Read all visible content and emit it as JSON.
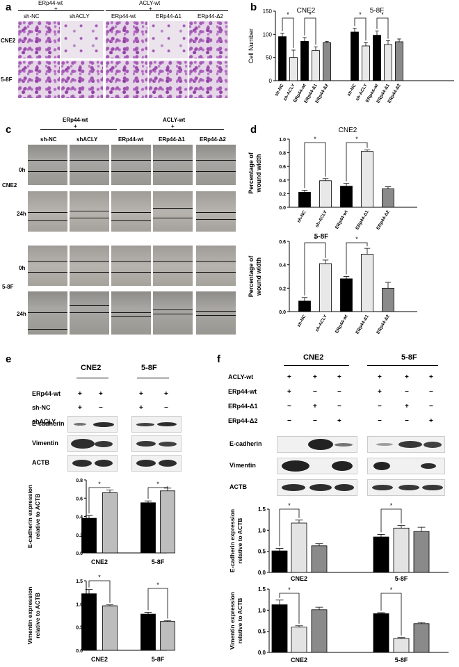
{
  "panels": {
    "a": "a",
    "b": "b",
    "c": "c",
    "d": "d",
    "e": "e",
    "f": "f"
  },
  "panel_a": {
    "grp1_title": "ERp44-wt",
    "grp1_plus": "+",
    "grp2_title": "ACLY-wt",
    "grp2_plus": "+",
    "cols": [
      "sh-NC",
      "shACLY",
      "ERp44-wt",
      "ERp44-Δ1",
      "ERp44-Δ2"
    ],
    "rows": [
      "CNE2",
      "5-8F"
    ]
  },
  "panel_c": {
    "grp1_title": "ERp44-wt",
    "grp1_plus": "+",
    "grp2_title": "ACLY-wt",
    "grp2_plus": "+",
    "cols": [
      "sh-NC",
      "shACLY",
      "ERp44-wt",
      "ERp44-Δ1",
      "ERp44-Δ2"
    ],
    "cells": [
      "CNE2",
      "5-8F"
    ],
    "times": [
      "0h",
      "24h",
      "0h",
      "24h"
    ]
  },
  "panel_e": {
    "cell_headers": [
      "CNE2",
      "5-8F"
    ],
    "conditions": [
      {
        "label": "ERp44-wt",
        "marks": [
          "+",
          "+",
          "+",
          "+"
        ]
      },
      {
        "label": "sh-NC",
        "marks": [
          "+",
          "−",
          "+",
          "−"
        ]
      },
      {
        "label": "shACLY",
        "marks": [
          "−",
          "+",
          "−",
          "+"
        ]
      }
    ],
    "blots": [
      "E-cadherin",
      "Vimentin",
      "ACTB"
    ]
  },
  "panel_f": {
    "cell_headers": [
      "CNE2",
      "5-8F"
    ],
    "conditions": [
      {
        "label": "ACLY-wt",
        "marks": [
          "+",
          "+",
          "+",
          "+",
          "+",
          "+"
        ]
      },
      {
        "label": "ERp44-wt",
        "marks": [
          "+",
          "−",
          "−",
          "+",
          "−",
          "−"
        ]
      },
      {
        "label": "ERp44-Δ1",
        "marks": [
          "−",
          "+",
          "−",
          "−",
          "+",
          "−"
        ]
      },
      {
        "label": "ERp44-Δ2",
        "marks": [
          "−",
          "−",
          "+",
          "−",
          "−",
          "+"
        ]
      }
    ],
    "blots": [
      "E-cadherin",
      "Vimentin",
      "ACTB"
    ]
  },
  "chart_data": [
    {
      "id": "b",
      "type": "bar",
      "groups": [
        "CNE2",
        "5-8F"
      ],
      "categories": [
        "sh-NC",
        "sh-ACLY",
        "ERp44-wt",
        "ERp44-Δ1",
        "ERp44-Δ2",
        "sh-NC",
        "sh-ACLY",
        "ERp44-wt",
        "ERp44-Δ1",
        "ERp44-Δ2"
      ],
      "values": [
        95,
        50,
        85,
        65,
        82,
        105,
        75,
        98,
        78,
        84
      ],
      "errors": [
        7,
        16,
        8,
        8,
        3,
        8,
        7,
        9,
        8,
        6
      ],
      "colors": [
        "#000000",
        "#e8e8e8",
        "#000000",
        "#e8e8e8",
        "#8a8a8a",
        "#000000",
        "#e8e8e8",
        "#000000",
        "#e8e8e8",
        "#8a8a8a"
      ],
      "ylabel": "Cell Number",
      "ylim": [
        0,
        150
      ],
      "yticks": [
        "0",
        "50",
        "100",
        "150"
      ],
      "signif": [
        [
          0,
          1
        ],
        [
          2,
          3
        ],
        [
          5,
          6
        ],
        [
          7,
          8
        ]
      ],
      "star": "*"
    },
    {
      "id": "d1",
      "type": "bar",
      "title": "CNE2",
      "categories": [
        "sh-NC",
        "sh-ACLY",
        "ERp44-wt",
        "ERp44-Δ1",
        "ERp44-Δ2"
      ],
      "values": [
        0.22,
        0.39,
        0.31,
        0.82,
        0.27
      ],
      "errors": [
        0.03,
        0.03,
        0.04,
        0.02,
        0.03
      ],
      "colors": [
        "#000000",
        "#e8e8e8",
        "#000000",
        "#e8e8e8",
        "#8a8a8a"
      ],
      "ylabel": "Percentage of wound width",
      "ylim": [
        0,
        1.0
      ],
      "yticks": [
        "0.0",
        "0.2",
        "0.4",
        "0.6",
        "0.8",
        "1.0"
      ],
      "signif": [
        [
          0,
          1
        ],
        [
          2,
          3
        ]
      ],
      "star": "*"
    },
    {
      "id": "d2",
      "type": "bar",
      "title": "5-8F",
      "categories": [
        "sh-NC",
        "sh-ACLY",
        "ERp44-wt",
        "ERp44-Δ1",
        "ERp44-Δ2"
      ],
      "values": [
        0.09,
        0.41,
        0.28,
        0.49,
        0.2
      ],
      "errors": [
        0.03,
        0.03,
        0.02,
        0.05,
        0.05
      ],
      "colors": [
        "#000000",
        "#e8e8e8",
        "#000000",
        "#e8e8e8",
        "#8a8a8a"
      ],
      "ylabel": "Percentage of wound width",
      "ylim": [
        0,
        0.6
      ],
      "yticks": [
        "0.0",
        "0.2",
        "0.4",
        "0.6"
      ],
      "signif": [
        [
          0,
          1
        ],
        [
          2,
          3
        ]
      ],
      "star": "*"
    },
    {
      "id": "e1",
      "type": "bar",
      "groups": [
        "CNE2",
        "5-8F"
      ],
      "values": [
        0.38,
        0.66,
        0.55,
        0.68
      ],
      "errors": [
        0.03,
        0.03,
        0.02,
        0.03
      ],
      "colors": [
        "#000000",
        "#bdbdbd",
        "#000000",
        "#bdbdbd"
      ],
      "ylabel": "E-cadherin expression relative to ACTB",
      "ylim": [
        0,
        0.8
      ],
      "yticks": [
        "0.0",
        "0.2",
        "0.4",
        "0.6",
        "0.8"
      ],
      "signif": [
        [
          0,
          1
        ],
        [
          2,
          3
        ]
      ],
      "star": "*"
    },
    {
      "id": "e2",
      "type": "bar",
      "groups": [
        "CNE2",
        "5-8F"
      ],
      "values": [
        1.22,
        0.96,
        0.78,
        0.62
      ],
      "errors": [
        0.09,
        0.02,
        0.04,
        0.02
      ],
      "colors": [
        "#000000",
        "#bdbdbd",
        "#000000",
        "#bdbdbd"
      ],
      "ylabel": "Vimentin expression relative to ACTB",
      "ylim": [
        0,
        1.5
      ],
      "yticks": [
        "0.0",
        "0.5",
        "1.0",
        "1.5"
      ],
      "signif": [
        [
          0,
          1
        ],
        [
          2,
          3
        ]
      ],
      "star": "*"
    },
    {
      "id": "f1",
      "type": "bar",
      "groups": [
        "CNE2",
        "5-8F"
      ],
      "values": [
        0.51,
        1.17,
        0.63,
        0.84,
        1.05,
        0.97
      ],
      "errors": [
        0.06,
        0.07,
        0.05,
        0.06,
        0.06,
        0.1
      ],
      "colors": [
        "#000000",
        "#e3e3e3",
        "#8a8a8a",
        "#000000",
        "#e3e3e3",
        "#8a8a8a"
      ],
      "ylabel": "E-cadherin expression relative to ACTB",
      "ylim": [
        0,
        1.5
      ],
      "yticks": [
        "0.0",
        "0.5",
        "1.0",
        "1.5"
      ],
      "signif": [
        [
          0,
          1
        ],
        [
          3,
          4
        ]
      ],
      "star": "*"
    },
    {
      "id": "f2",
      "type": "bar",
      "groups": [
        "CNE2",
        "5-8F"
      ],
      "values": [
        1.13,
        0.6,
        1.01,
        0.92,
        0.33,
        0.68
      ],
      "errors": [
        0.11,
        0.03,
        0.06,
        0.02,
        0.02,
        0.03
      ],
      "colors": [
        "#000000",
        "#e3e3e3",
        "#8a8a8a",
        "#000000",
        "#e3e3e3",
        "#8a8a8a"
      ],
      "ylabel": "Vimentin expression relative to ACTB",
      "ylim": [
        0,
        1.5
      ],
      "yticks": [
        "0.0",
        "0.5",
        "1.0",
        "1.5"
      ],
      "signif": [
        [
          0,
          1
        ],
        [
          3,
          4
        ]
      ],
      "star": "*"
    }
  ]
}
